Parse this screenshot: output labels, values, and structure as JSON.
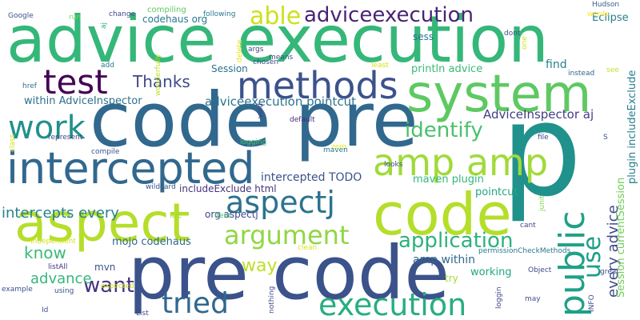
{
  "cloud": {
    "words": [
      {
        "text": "advice execution",
        "color": "#35b779"
      },
      {
        "text": "code pre",
        "color": "#31688e"
      },
      {
        "text": "p",
        "color": "#21918c"
      },
      {
        "text": "pre code",
        "color": "#3b528b"
      },
      {
        "text": "system",
        "color": "#5ec962"
      },
      {
        "text": "aspect",
        "color": "#b5de2b"
      },
      {
        "text": "code",
        "color": "#b5de2b"
      },
      {
        "text": "intercepted",
        "color": "#31688e"
      },
      {
        "text": "methods",
        "color": "#3b528b"
      },
      {
        "text": "test",
        "color": "#440154"
      },
      {
        "text": "amp amp",
        "color": "#a0da39"
      },
      {
        "text": "public",
        "color": "#1fa187"
      },
      {
        "text": "execution",
        "color": "#28ae80"
      },
      {
        "text": "work",
        "color": "#21918c"
      },
      {
        "text": "aspectj",
        "color": "#2c728e"
      },
      {
        "text": "argument",
        "color": "#90d743"
      },
      {
        "text": "able",
        "color": "#cde11d"
      },
      {
        "text": "adviceexecution",
        "color": "#482475"
      },
      {
        "text": "tried",
        "color": "#31688e"
      },
      {
        "text": "application",
        "color": "#2db27d"
      },
      {
        "text": "identify",
        "color": "#4ac16d"
      },
      {
        "text": "use",
        "color": "#1f9e89"
      },
      {
        "text": "want",
        "color": "#46337e"
      },
      {
        "text": "intercepts every",
        "color": "#26828e"
      },
      {
        "text": "Thanks",
        "color": "#3e4989"
      },
      {
        "text": "advance",
        "color": "#35b779"
      },
      {
        "text": "every advice",
        "color": "#3e4989"
      },
      {
        "text": "way",
        "color": "#bddf26"
      },
      {
        "text": "know",
        "color": "#3aba76"
      },
      {
        "text": "Session currentSession",
        "color": "#6ece58"
      },
      {
        "text": "plugin includeExclude",
        "color": "#277f8e"
      },
      {
        "text": "within AdviceInspector",
        "color": "#2e6f8e"
      },
      {
        "text": "adviceexecution pointcut",
        "color": "#2c728e"
      },
      {
        "text": "AdviceInspector aj",
        "color": "#433e85"
      },
      {
        "text": "intercepted TODO",
        "color": "#3b528b"
      },
      {
        "text": "maven plugin",
        "color": "#35b779"
      },
      {
        "text": "includeExclude html",
        "color": "#46337e"
      },
      {
        "text": "org aspectj",
        "color": "#3e4989"
      },
      {
        "text": "mojo codehaus",
        "color": "#31688e"
      },
      {
        "text": "amp within",
        "color": "#31688e"
      },
      {
        "text": "println advice",
        "color": "#3aba76"
      },
      {
        "text": "codehaus org",
        "color": "#2a788e"
      },
      {
        "text": "Session",
        "color": "#2c728e"
      },
      {
        "text": "pointcut",
        "color": "#21a685"
      },
      {
        "text": "find",
        "color": "#26828e"
      },
      {
        "text": "Eclipse",
        "color": "#277f8e"
      },
      {
        "text": "working",
        "color": "#22a884"
      },
      {
        "text": "try",
        "color": "#a5db36"
      },
      {
        "text": "sess",
        "color": "#2c728e"
      },
      {
        "text": "mvn",
        "color": "#3b528b"
      },
      {
        "text": "compiling",
        "color": "#5ec962"
      },
      {
        "text": "change",
        "color": "#3e4989"
      },
      {
        "text": "following",
        "color": "#2a788e"
      },
      {
        "text": "Google",
        "color": "#3b528b"
      },
      {
        "text": "run",
        "color": "#7ad151"
      },
      {
        "text": "aj",
        "color": "#2db27d"
      },
      {
        "text": "wonderfully",
        "color": "#bddf26"
      },
      {
        "text": "args",
        "color": "#414487"
      },
      {
        "text": "means",
        "color": "#3b528b"
      },
      {
        "text": "delete",
        "color": "#e5e419"
      },
      {
        "text": "chosen",
        "color": "#3e4989"
      },
      {
        "text": "default",
        "color": "#482878"
      },
      {
        "text": "least",
        "color": "#d8e219"
      },
      {
        "text": "instead",
        "color": "#33638d"
      },
      {
        "text": "see",
        "color": "#c2df23"
      },
      {
        "text": "dont",
        "color": "#3b528b"
      },
      {
        "text": "one",
        "color": "#d2e21b"
      },
      {
        "text": "words",
        "color": "#fde725"
      },
      {
        "text": "Hudson",
        "color": "#365c8d"
      },
      {
        "text": "add",
        "color": "#2a788e"
      },
      {
        "text": "href",
        "color": "#2c728e"
      },
      {
        "text": "void",
        "color": "#453882"
      },
      {
        "text": "logging",
        "color": "#4ac16d"
      },
      {
        "text": "class",
        "color": "#d5e21a"
      },
      {
        "text": "represent",
        "color": "#3e4989"
      },
      {
        "text": "compile",
        "color": "#3b528b"
      },
      {
        "text": "zero",
        "color": "#e7e419"
      },
      {
        "text": "maven",
        "color": "#2a788e"
      },
      {
        "text": "file",
        "color": "#3e4989"
      },
      {
        "text": "S",
        "color": "#3b528b"
      },
      {
        "text": "junit",
        "color": "#7fd34e"
      },
      {
        "text": "looks",
        "color": "#3b528b"
      },
      {
        "text": "wildcard",
        "color": "#3b528b"
      },
      {
        "text": "IDE",
        "color": "#a2da37"
      },
      {
        "text": "item",
        "color": "#46c06f"
      },
      {
        "text": "cant",
        "color": "#3e4989"
      },
      {
        "text": "independent",
        "color": "#d2e21b"
      },
      {
        "text": "clean",
        "color": "#d8e219"
      },
      {
        "text": "permissionCheckMethods",
        "color": "#2a788e"
      },
      {
        "text": "great",
        "color": "#3b528b"
      },
      {
        "text": "Object",
        "color": "#3e4989"
      },
      {
        "text": "example",
        "color": "#3b528b"
      },
      {
        "text": "listAll",
        "color": "#46337e"
      },
      {
        "text": "expected",
        "color": "#c8e020"
      },
      {
        "text": "using",
        "color": "#3b528b"
      },
      {
        "text": "nothing",
        "color": "#3e4989"
      },
      {
        "text": "loggin",
        "color": "#3e4989"
      },
      {
        "text": "may",
        "color": "#3b528b"
      },
      {
        "text": "INFO",
        "color": "#3b528b"
      },
      {
        "text": "Id",
        "color": "#3b528b"
      },
      {
        "text": "List",
        "color": "#3e4989"
      }
    ]
  }
}
